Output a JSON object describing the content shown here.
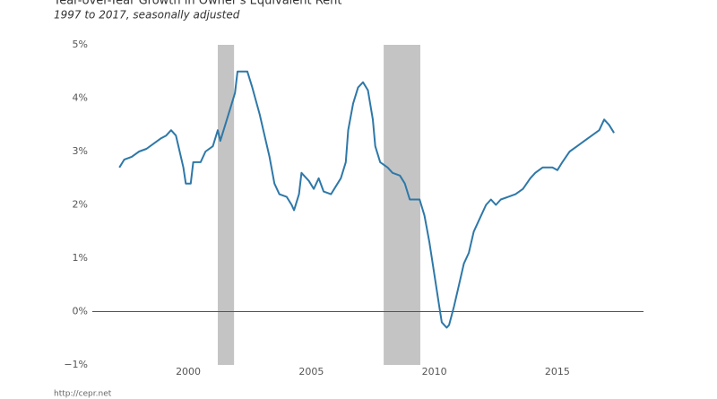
{
  "chart_data": {
    "type": "line",
    "title": "Year-over-Year Growth in Owner's Equivalent Rent",
    "subtitle": "1997 to 2017, seasonally adjusted",
    "source": "http://cepr.net",
    "xlim": [
      1996.1,
      2018.5
    ],
    "ylim": [
      -1,
      5
    ],
    "xticks": [
      2000,
      2005,
      2010,
      2015
    ],
    "yticks": [
      {
        "value": -1,
        "label": "−1%"
      },
      {
        "value": 0,
        "label": "0%"
      },
      {
        "value": 1,
        "label": "1%"
      },
      {
        "value": 2,
        "label": "2%"
      },
      {
        "value": 3,
        "label": "3%"
      },
      {
        "value": 4,
        "label": "4%"
      },
      {
        "value": 5,
        "label": "5%"
      }
    ],
    "recessions": [
      [
        2001.2,
        2001.86
      ],
      [
        2007.94,
        2009.43
      ]
    ],
    "recession_color": "#c4c4c4",
    "series": [
      {
        "color": "#2e78a8",
        "x": [
          1997.2,
          1997.4,
          1997.7,
          1998.0,
          1998.3,
          1998.6,
          1998.9,
          1999.1,
          1999.3,
          1999.5,
          1999.6,
          1999.8,
          1999.9,
          2000.1,
          2000.2,
          2000.5,
          2000.7,
          2001.0,
          2001.2,
          2001.3,
          2001.5,
          2001.7,
          2001.9,
          2002.0,
          2002.4,
          2002.6,
          2002.9,
          2003.1,
          2003.3,
          2003.5,
          2003.7,
          2004.0,
          2004.2,
          2004.3,
          2004.5,
          2004.6,
          2004.9,
          2005.1,
          2005.3,
          2005.5,
          2005.8,
          2006.0,
          2006.2,
          2006.4,
          2006.5,
          2006.7,
          2006.9,
          2007.1,
          2007.3,
          2007.5,
          2007.6,
          2007.8,
          2008.1,
          2008.3,
          2008.6,
          2008.8,
          2009.0,
          2009.4,
          2009.6,
          2009.8,
          2010.0,
          2010.2,
          2010.3,
          2010.5,
          2010.6,
          2010.8,
          2011.0,
          2011.2,
          2011.4,
          2011.6,
          2011.9,
          2012.1,
          2012.3,
          2012.5,
          2012.7,
          2013.0,
          2013.3,
          2013.6,
          2013.9,
          2014.1,
          2014.4,
          2014.8,
          2015.0,
          2015.2,
          2015.5,
          2015.8,
          2016.1,
          2016.4,
          2016.7,
          2016.9,
          2017.1,
          2017.3
        ],
        "values": [
          2.7,
          2.85,
          2.9,
          3.0,
          3.05,
          3.15,
          3.25,
          3.3,
          3.4,
          3.3,
          3.1,
          2.7,
          2.4,
          2.4,
          2.8,
          2.8,
          3.0,
          3.1,
          3.4,
          3.2,
          3.5,
          3.8,
          4.1,
          4.5,
          4.5,
          4.2,
          3.7,
          3.3,
          2.9,
          2.4,
          2.2,
          2.15,
          2.0,
          1.9,
          2.2,
          2.6,
          2.45,
          2.3,
          2.5,
          2.25,
          2.2,
          2.35,
          2.5,
          2.8,
          3.4,
          3.9,
          4.2,
          4.3,
          4.15,
          3.6,
          3.1,
          2.8,
          2.7,
          2.6,
          2.55,
          2.4,
          2.1,
          2.1,
          1.8,
          1.3,
          0.7,
          0.1,
          -0.2,
          -0.3,
          -0.25,
          0.1,
          0.5,
          0.9,
          1.1,
          1.5,
          1.8,
          2.0,
          2.1,
          2.0,
          2.1,
          2.15,
          2.2,
          2.3,
          2.5,
          2.6,
          2.7,
          2.7,
          2.65,
          2.8,
          3.0,
          3.1,
          3.2,
          3.3,
          3.4,
          3.6,
          3.5,
          3.35
        ]
      }
    ]
  }
}
